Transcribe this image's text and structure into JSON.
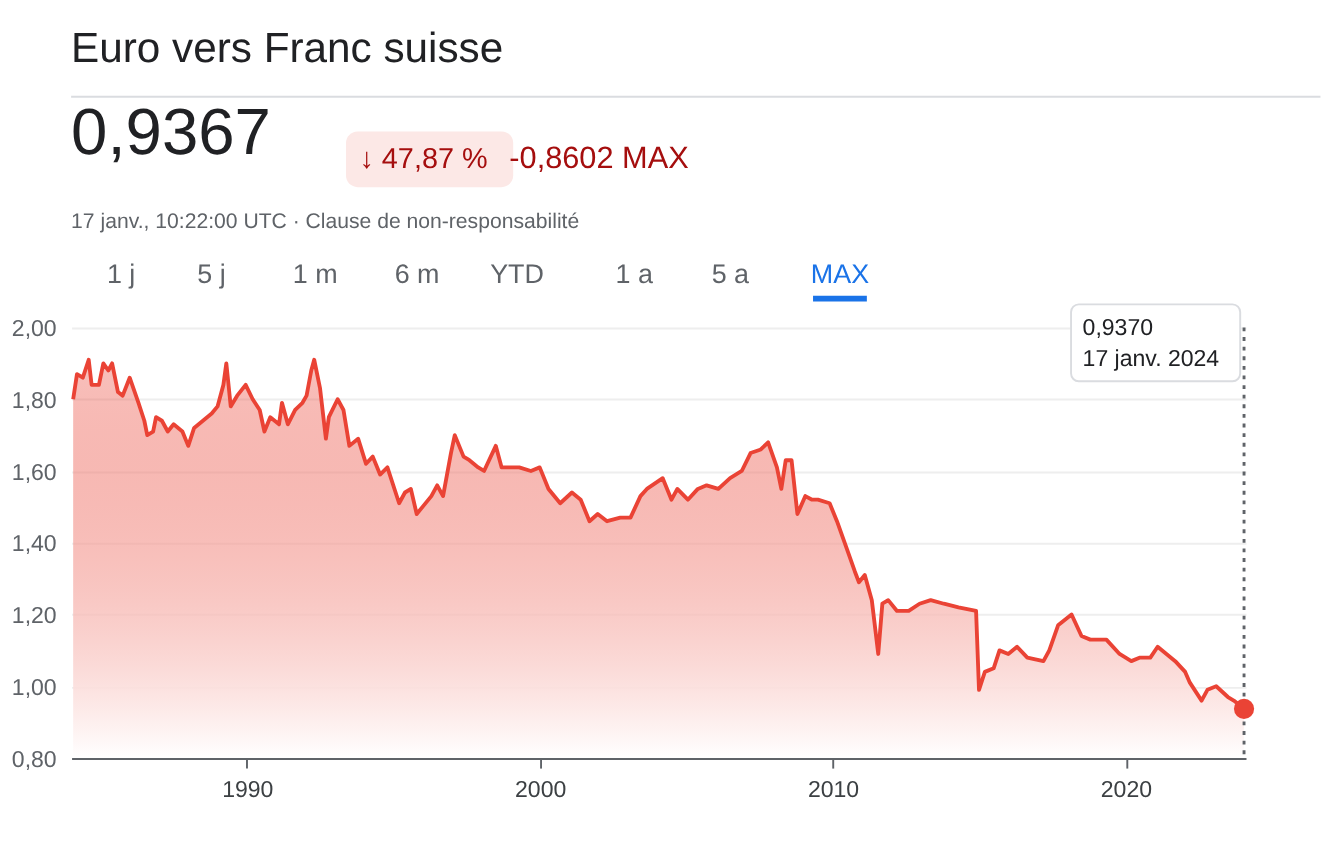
{
  "chart_data": {
    "type": "area",
    "title": "Euro vers Franc suisse",
    "annotations": [
      "0,9367",
      "↓ 47,87 %",
      "-0,8602 MAX",
      "17 janv., 10:22:00 UTC · Clause de non-responsabilité",
      "1 j",
      "5 j",
      "1 m",
      "6 m",
      "YTD",
      "1 a",
      "5 a",
      "MAX",
      "0,9370\n17 janv. 2024"
    ],
    "series": [
      {
        "color": "#ea4335",
        "x": [
          1984.07,
          1984.2,
          1984.4,
          1984.6,
          1984.7,
          1984.95,
          1985.1,
          1985.27,
          1985.4,
          1985.6,
          1985.76,
          1986.0,
          1986.3,
          1986.5,
          1986.6,
          1986.8,
          1986.9,
          1987.1,
          1987.3,
          1987.5,
          1987.8,
          1988.0,
          1988.2,
          1988.5,
          1988.8,
          1989.0,
          1989.2,
          1989.3,
          1989.45,
          1989.67,
          1989.96,
          1990.2,
          1990.44,
          1990.6,
          1990.8,
          1991.1,
          1991.2,
          1991.4,
          1991.65,
          1991.9,
          1992.04,
          1992.2,
          1992.3,
          1992.5,
          1992.7,
          1992.8,
          1993.1,
          1993.3,
          1993.5,
          1993.8,
          1994.07,
          1994.3,
          1994.55,
          1994.8,
          1995.2,
          1995.4,
          1995.6,
          1995.8,
          1996.0,
          1996.3,
          1996.5,
          1996.7,
          1996.97,
          1997.1,
          1997.4,
          1997.6,
          1997.9,
          1998.1,
          1998.5,
          1998.7,
          1999.0,
          1999.3,
          1999.7,
          2000.0,
          2000.3,
          2000.7,
          2001.1,
          2001.4,
          2001.7,
          2001.98,
          2002.3,
          2002.75,
          2003.1,
          2003.44,
          2003.66,
          2004.2,
          2004.5,
          2004.7,
          2005.06,
          2005.4,
          2005.7,
          2006.1,
          2006.5,
          2006.9,
          2007.2,
          2007.55,
          2007.8,
          2008.1,
          2008.25,
          2008.4,
          2008.6,
          2008.8,
          2009.07,
          2009.3,
          2009.5,
          2009.9,
          2010.15,
          2010.5,
          2010.76,
          2010.9,
          2011.1,
          2011.34,
          2011.56,
          2011.7,
          2011.9,
          2012.2,
          2012.6,
          2012.97,
          2013.35,
          2013.8,
          2014.3,
          2014.9,
          2015.0,
          2015.2,
          2015.5,
          2015.7,
          2016.0,
          2016.3,
          2016.65,
          2017.2,
          2017.4,
          2017.7,
          2018.16,
          2018.5,
          2018.8,
          2019.35,
          2019.8,
          2020.2,
          2020.5,
          2020.85,
          2021.1,
          2021.4,
          2021.7,
          2022.04,
          2022.2,
          2022.6,
          2022.8,
          2023.1,
          2023.5,
          2023.7,
          2024.05
        ],
        "values": [
          1.8,
          1.87,
          1.86,
          1.91,
          1.84,
          1.84,
          1.9,
          1.88,
          1.9,
          1.82,
          1.81,
          1.86,
          1.79,
          1.74,
          1.7,
          1.71,
          1.75,
          1.74,
          1.71,
          1.73,
          1.71,
          1.67,
          1.72,
          1.74,
          1.76,
          1.78,
          1.84,
          1.9,
          1.78,
          1.81,
          1.84,
          1.8,
          1.77,
          1.71,
          1.75,
          1.73,
          1.79,
          1.73,
          1.77,
          1.79,
          1.81,
          1.88,
          1.91,
          1.83,
          1.69,
          1.75,
          1.8,
          1.77,
          1.67,
          1.69,
          1.62,
          1.64,
          1.59,
          1.61,
          1.51,
          1.54,
          1.55,
          1.48,
          1.5,
          1.53,
          1.56,
          1.53,
          1.65,
          1.7,
          1.64,
          1.63,
          1.61,
          1.6,
          1.67,
          1.61,
          1.61,
          1.61,
          1.6,
          1.61,
          1.55,
          1.51,
          1.54,
          1.52,
          1.46,
          1.48,
          1.46,
          1.47,
          1.47,
          1.53,
          1.55,
          1.58,
          1.52,
          1.55,
          1.52,
          1.55,
          1.56,
          1.55,
          1.58,
          1.6,
          1.65,
          1.66,
          1.68,
          1.61,
          1.55,
          1.63,
          1.63,
          1.48,
          1.53,
          1.52,
          1.52,
          1.51,
          1.46,
          1.38,
          1.32,
          1.29,
          1.31,
          1.24,
          1.09,
          1.23,
          1.24,
          1.21,
          1.21,
          1.23,
          1.24,
          1.23,
          1.22,
          1.21,
          0.99,
          1.04,
          1.05,
          1.1,
          1.09,
          1.11,
          1.08,
          1.07,
          1.1,
          1.17,
          1.2,
          1.14,
          1.13,
          1.13,
          1.09,
          1.07,
          1.08,
          1.08,
          1.11,
          1.09,
          1.07,
          1.04,
          1.01,
          0.96,
          0.99,
          1.0,
          0.97,
          0.96,
          0.937
        ]
      },
      {
        "type": "scatter",
        "color": "#ea4335",
        "x": [
          2024.05
        ],
        "values": [
          0.937
        ]
      }
    ],
    "xlim": [
      1984.0,
      2024.1
    ],
    "ylim": [
      0.8,
      2.0
    ],
    "xticks": [
      1990,
      2000,
      2010,
      2020
    ],
    "yticks": [
      {
        "value": 0.8,
        "label": "0,80"
      },
      {
        "value": 1.0,
        "label": "1,00"
      },
      {
        "value": 1.2,
        "label": "1,20"
      },
      {
        "value": 1.4,
        "label": "1,40"
      },
      {
        "value": 1.6,
        "label": "1,60"
      },
      {
        "value": 1.8,
        "label": "1,80"
      },
      {
        "value": 2.0,
        "label": "2,00"
      }
    ],
    "grid": "y",
    "ref_lines": [
      {
        "axis": "x",
        "value": 2024.05,
        "color": "#5f6368",
        "line_style": "dotted"
      }
    ]
  }
}
